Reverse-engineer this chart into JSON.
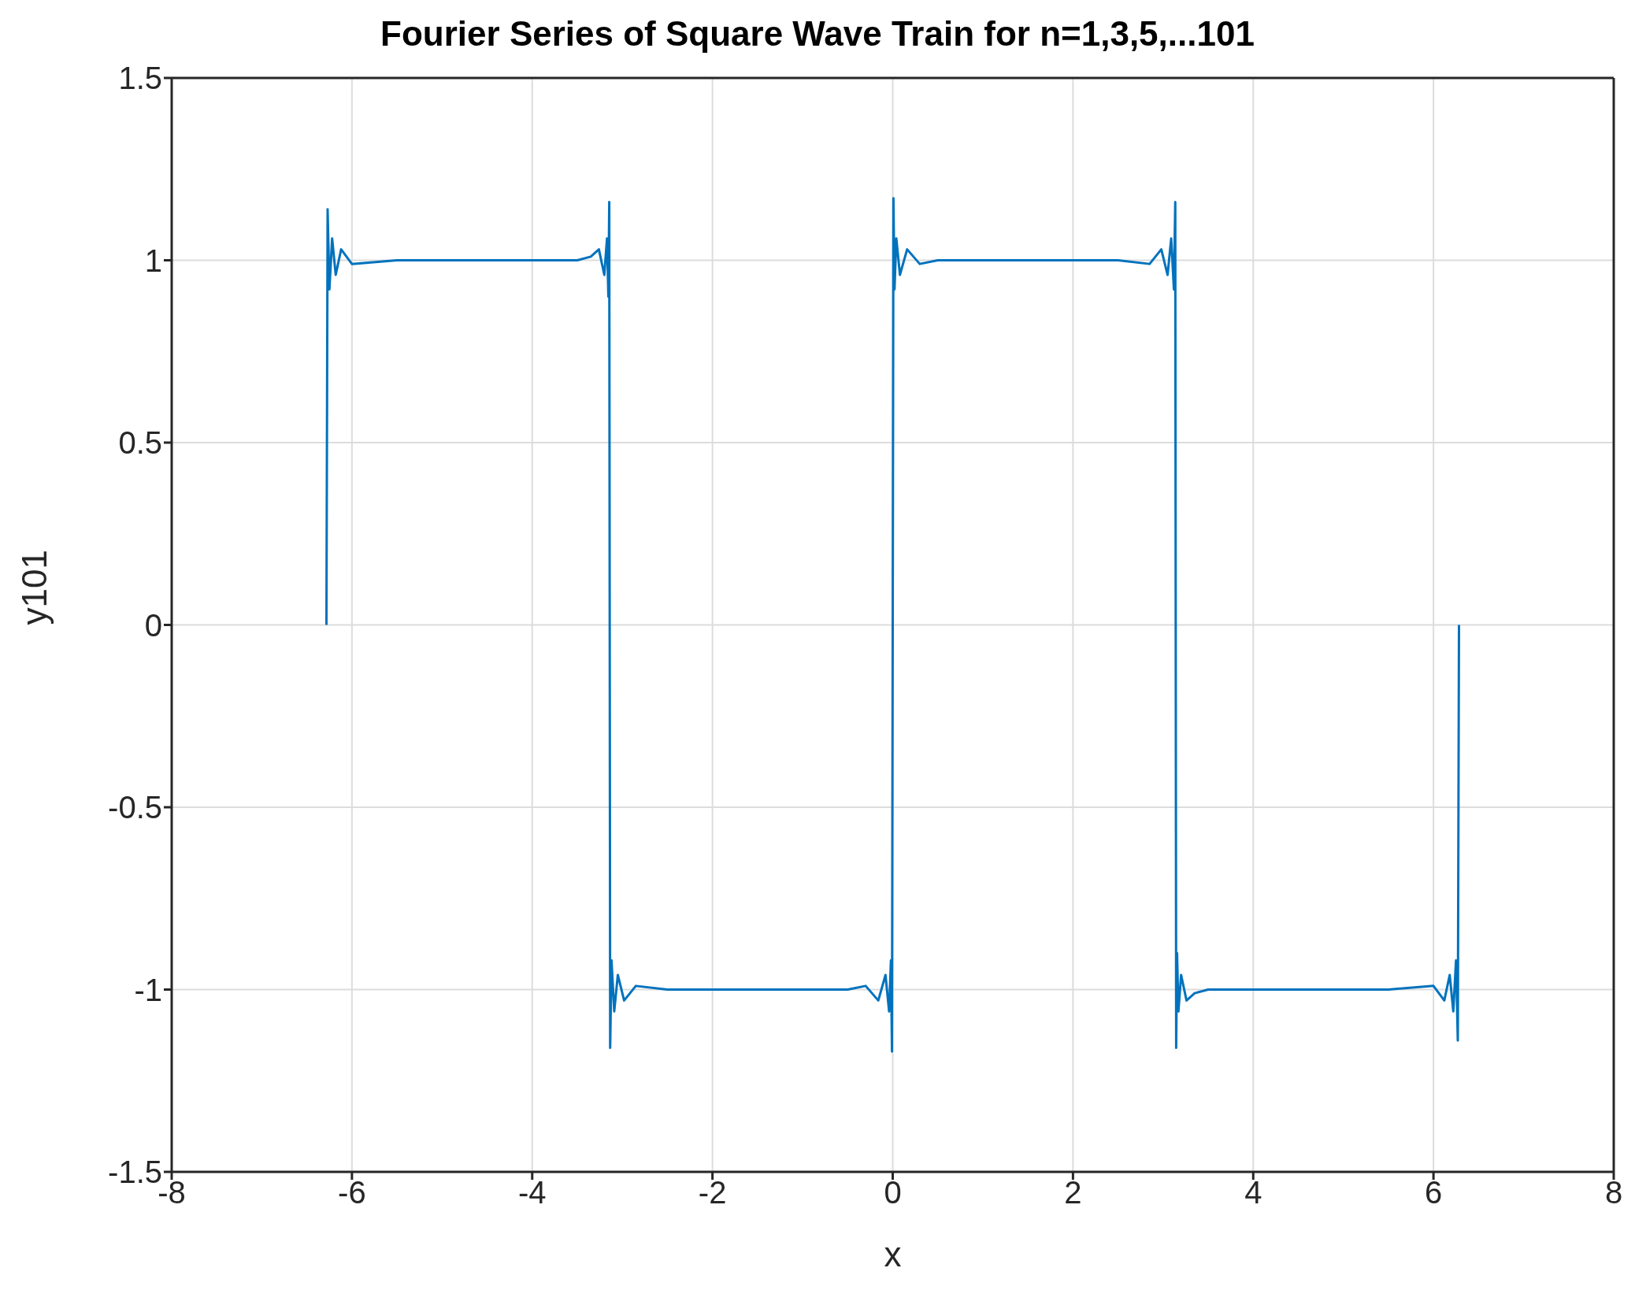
{
  "chart_data": {
    "type": "line",
    "title": "Fourier Series of Square Wave Train for n=1,3,5,...101",
    "xlabel": "x",
    "ylabel": "y101",
    "xlim": [
      -8,
      8
    ],
    "xticks": [
      -8,
      -6,
      -4,
      -2,
      0,
      2,
      4,
      6,
      8
    ],
    "ylim": [
      -1.5,
      1.5
    ],
    "yticks": [
      -1.5,
      -1,
      -0.5,
      0,
      0.5,
      1,
      1.5
    ],
    "grid": true,
    "marker": "none",
    "line_style": "solid",
    "series": [
      {
        "color": "#0072bd",
        "x": [
          -6.283,
          -6.27,
          -6.25,
          -6.22,
          -6.18,
          -6.12,
          -6.0,
          -5.5,
          -4.5,
          -3.5,
          -3.35,
          -3.26,
          -3.2,
          -3.17,
          -3.155,
          -3.145,
          -3.14,
          -3.135,
          -3.12,
          -3.09,
          -3.05,
          -2.98,
          -2.85,
          -2.5,
          -1.5,
          -0.5,
          -0.3,
          -0.16,
          -0.08,
          -0.04,
          -0.02,
          -0.008,
          0,
          0.008,
          0.02,
          0.04,
          0.08,
          0.16,
          0.3,
          0.5,
          1.5,
          2.5,
          2.85,
          2.98,
          3.05,
          3.09,
          3.12,
          3.135,
          3.14,
          3.145,
          3.155,
          3.17,
          3.2,
          3.26,
          3.35,
          3.5,
          4.5,
          5.5,
          6.0,
          6.12,
          6.18,
          6.22,
          6.25,
          6.27,
          6.283
        ],
        "values": [
          0,
          1.14,
          0.92,
          1.06,
          0.96,
          1.03,
          0.99,
          1.0,
          1.0,
          1.0,
          1.01,
          1.03,
          0.96,
          1.06,
          0.9,
          1.16,
          0,
          -1.16,
          -0.92,
          -1.06,
          -0.96,
          -1.03,
          -0.99,
          -1.0,
          -1.0,
          -1.0,
          -0.99,
          -1.03,
          -0.96,
          -1.06,
          -0.92,
          -1.17,
          0,
          1.17,
          0.92,
          1.06,
          0.96,
          1.03,
          0.99,
          1.0,
          1.0,
          1.0,
          0.99,
          1.03,
          0.96,
          1.06,
          0.92,
          1.16,
          0,
          -1.16,
          -0.9,
          -1.06,
          -0.96,
          -1.03,
          -1.01,
          -1.0,
          -1.0,
          -1.0,
          -0.99,
          -1.03,
          -0.96,
          -1.06,
          -0.92,
          -1.14,
          0
        ]
      }
    ]
  }
}
